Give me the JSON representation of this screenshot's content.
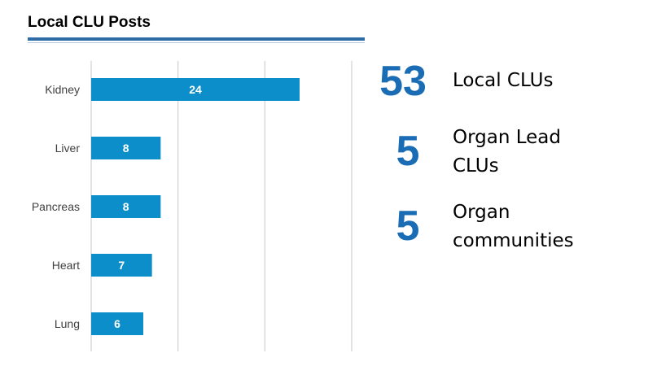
{
  "header": {
    "title": "Local CLU Posts"
  },
  "chart_data": {
    "type": "bar",
    "orientation": "horizontal",
    "categories": [
      "Kidney",
      "Liver",
      "Pancreas",
      "Heart",
      "Lung"
    ],
    "values": [
      24,
      8,
      8,
      7,
      6
    ],
    "xlim": [
      0,
      30
    ],
    "grid": "vertical",
    "bar_color": "#0b8ec9",
    "title": "",
    "xlabel": "",
    "ylabel": ""
  },
  "stats": [
    {
      "number": "53",
      "label_lines": [
        "Local CLUs"
      ]
    },
    {
      "number": "5",
      "label_lines": [
        "Organ Lead",
        "CLUs"
      ]
    },
    {
      "number": "5",
      "label_lines": [
        "Organ",
        "communities"
      ]
    }
  ]
}
